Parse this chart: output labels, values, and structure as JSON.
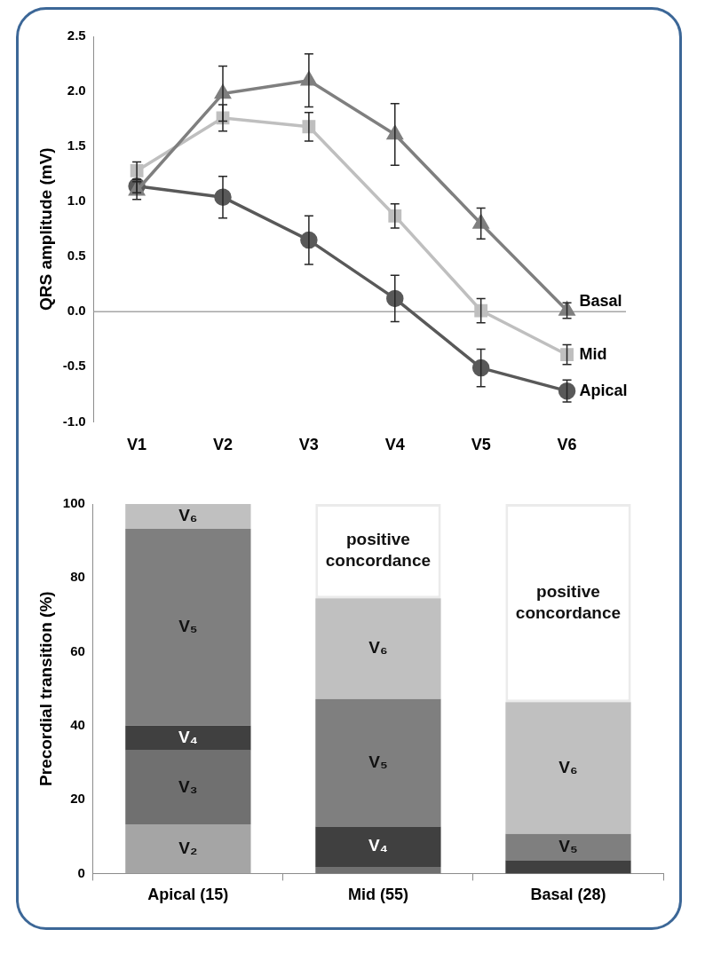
{
  "chart_data": [
    {
      "type": "line",
      "ylabel": "QRS amplitude (mV)",
      "categories": [
        "V1",
        "V2",
        "V3",
        "V4",
        "V5",
        "V6"
      ],
      "ylim": [
        -1,
        2.5
      ],
      "yticks": [
        {
          "value": -1,
          "label": "-1.0"
        },
        {
          "value": -0.5,
          "label": "-0.5"
        },
        {
          "value": 0,
          "label": "0.0"
        },
        {
          "value": 0.5,
          "label": "0.5"
        },
        {
          "value": 1,
          "label": "1.0"
        },
        {
          "value": 1.5,
          "label": "1.5"
        },
        {
          "value": 2,
          "label": "2.0"
        },
        {
          "value": 2.5,
          "label": "2.5"
        }
      ],
      "ref_lines": [
        {
          "axis": "y",
          "value": 0,
          "color": "#a6a6a6"
        }
      ],
      "series": [
        {
          "name": "Basal",
          "color": "#7f7f7f",
          "marker": "triangle",
          "values": [
            1.1,
            1.98,
            2.1,
            1.61,
            0.8,
            0.01
          ],
          "errors": [
            0.08,
            0.25,
            0.24,
            0.28,
            0.14,
            0.07
          ]
        },
        {
          "name": "Mid",
          "color": "#bfbfbf",
          "marker": "square",
          "values": [
            1.28,
            1.76,
            1.68,
            0.87,
            0.01,
            -0.39
          ],
          "errors": [
            0.08,
            0.12,
            0.13,
            0.11,
            0.11,
            0.09
          ]
        },
        {
          "name": "Apical",
          "color": "#595959",
          "marker": "circle",
          "values": [
            1.14,
            1.04,
            0.65,
            0.12,
            -0.51,
            -0.72
          ],
          "errors": [
            0.06,
            0.19,
            0.22,
            0.21,
            0.17,
            0.1
          ]
        }
      ]
    },
    {
      "type": "bar",
      "stacked": true,
      "ylabel": "Precordial transition (%)",
      "categories": [
        "Apical (15)",
        "Mid (55)",
        "Basal (28)"
      ],
      "ylim": [
        0,
        100
      ],
      "yticks": [
        0,
        20,
        40,
        60,
        80,
        100
      ],
      "series": [
        {
          "name": "V₂",
          "color": "#a5a5a5",
          "values": [
            13.3,
            0,
            0
          ]
        },
        {
          "name": "V₃",
          "color": "#707070",
          "values": [
            20,
            1.8,
            0
          ]
        },
        {
          "name": "V₄",
          "color": "#404040",
          "values": [
            6.7,
            10.9,
            3.6
          ]
        },
        {
          "name": "V₅",
          "color": "#7f7f7f",
          "values": [
            53.3,
            34.5,
            7.1
          ]
        },
        {
          "name": "V₆",
          "color": "#c0c0c0",
          "values": [
            6.7,
            27.3,
            35.7
          ]
        },
        {
          "name": "positive concordance",
          "color": "#ebebeb",
          "values": [
            0,
            25.5,
            53.6
          ]
        }
      ]
    }
  ]
}
